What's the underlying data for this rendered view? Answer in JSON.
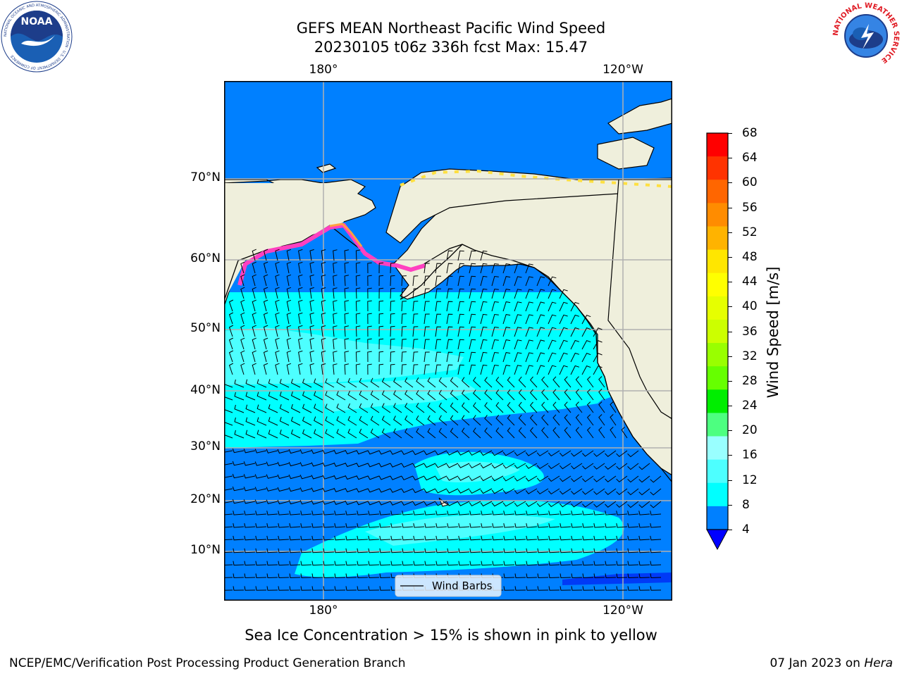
{
  "title": {
    "line1": "GEFS MEAN Northeast Pacific Wind Speed",
    "line2": "20230105 t06z 336h fcst   Max: 15.47"
  },
  "map": {
    "longitude_labels": [
      "180°",
      "120°W"
    ],
    "latitude_labels": [
      "70°N",
      "60°N",
      "50°N",
      "40°N",
      "30°N",
      "20°N",
      "10°N"
    ],
    "legend_label": "Wind Barbs",
    "land_color": "#efefdc",
    "ocean_colors": {
      "band_4_8": "#0080ff",
      "band_8_12": "#00ffff",
      "band_12_16": "#4dffff"
    },
    "sea_ice_colors": [
      "#ff40c0",
      "#ffa040",
      "#ffe040"
    ]
  },
  "colorbar": {
    "title": "Wind Speed [m/s]",
    "ticks": [
      "68",
      "64",
      "60",
      "56",
      "52",
      "48",
      "44",
      "40",
      "36",
      "32",
      "28",
      "24",
      "20",
      "16",
      "12",
      "8",
      "4"
    ],
    "colors": [
      "#ff0000",
      "#ff3300",
      "#ff6600",
      "#ff8c00",
      "#ffb300",
      "#ffe600",
      "#ffff00",
      "#e6ff00",
      "#ccff00",
      "#99ff00",
      "#66ff00",
      "#00ee00",
      "#4dff80",
      "#99ffff",
      "#4dffff",
      "#00ffff",
      "#0080ff"
    ],
    "extend_color": "#0000ff"
  },
  "footer": {
    "note": "Sea Ice Concentration > 15% is shown in pink to yellow",
    "credit_left": "NCEP/EMC/Verification Post Processing Product Generation Branch",
    "date": "07 Jan 2023 on",
    "machine": "Hera"
  },
  "logos": {
    "noaa": {
      "text": "NOAA",
      "ring_text": "NATIONAL OCEANIC AND ATMOSPHERIC ADMINISTRATION · U.S. DEPARTMENT OF COMMERCE"
    },
    "nws": {
      "ring_text": "NATIONAL WEATHER SERVICE"
    }
  }
}
